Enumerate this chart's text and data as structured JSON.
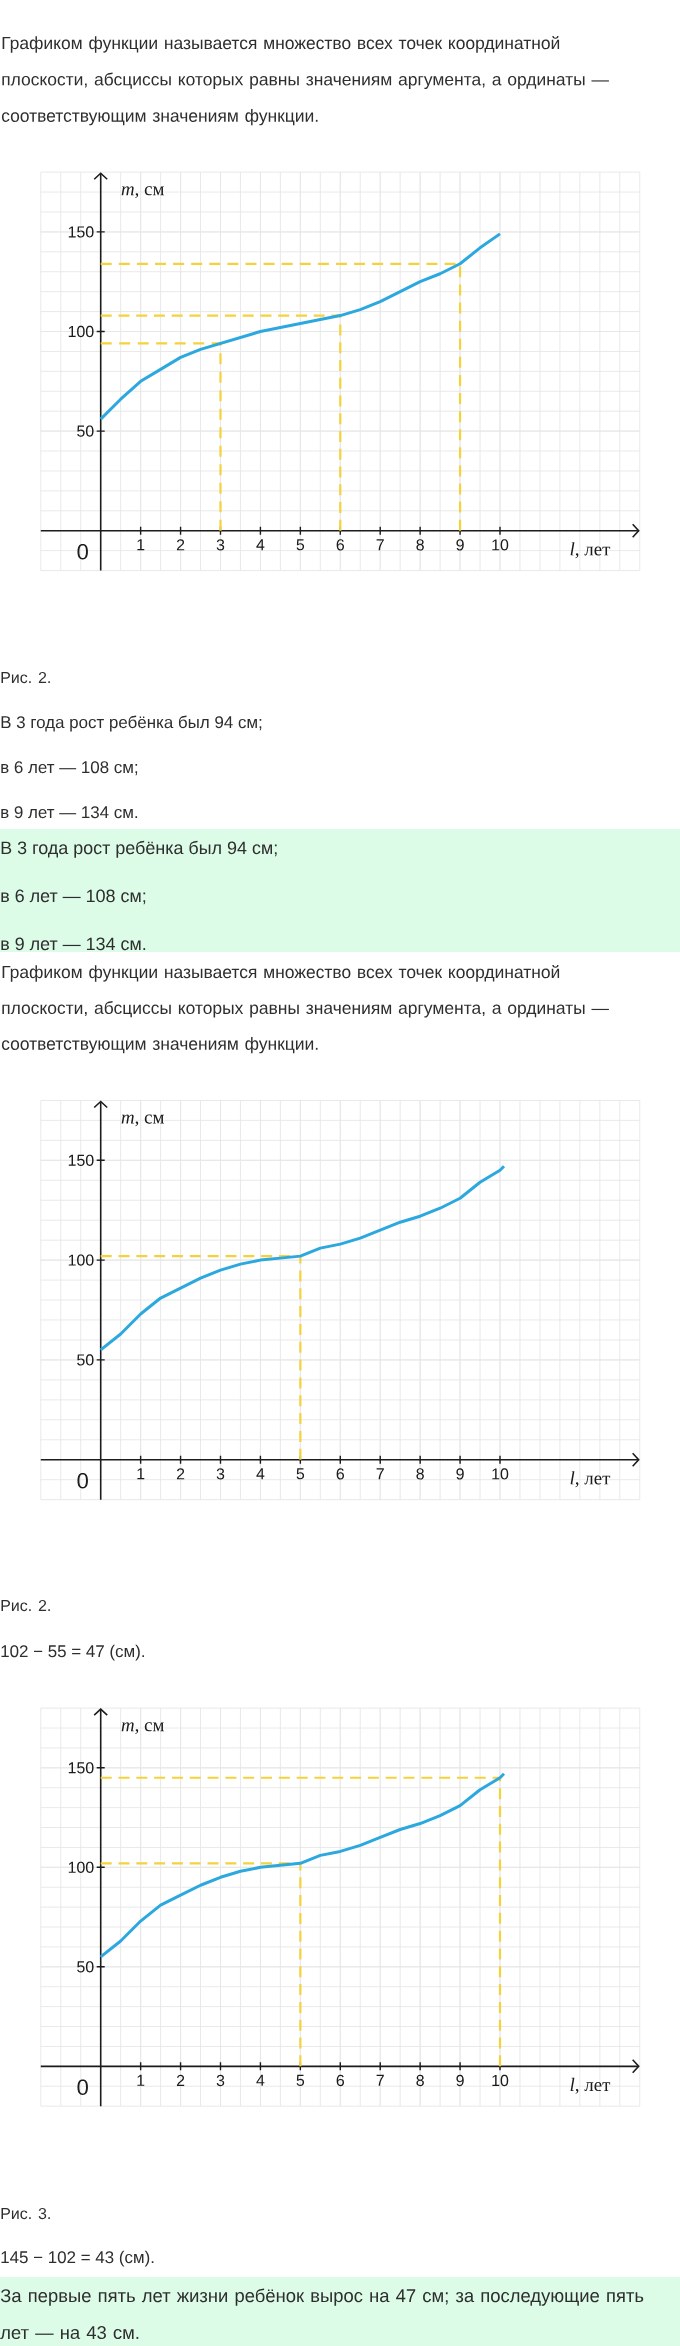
{
  "chart_data": [
    {
      "type": "line",
      "title": "Графиком функции называется множество всех точек координатной плоскости, абсциссы которых равны значениям аргумента, а ординаты — соответствующим значениям функции.",
      "xlabel": "*l*, лет",
      "ylabel": "*m*, см",
      "xlim": [
        -1.5,
        13.5
      ],
      "ylim": [
        -20,
        180
      ],
      "xticks": [
        1,
        2,
        3,
        4,
        5,
        6,
        7,
        8,
        9,
        10
      ],
      "yticks": [
        50,
        100,
        150
      ],
      "grid": true,
      "series": [
        {
          "color": "#2ca8df",
          "x": [
            0,
            0.5,
            1,
            1.5,
            2,
            2.5,
            3,
            3.5,
            4,
            4.5,
            5,
            5.5,
            6,
            6.5,
            7,
            7.5,
            8,
            8.5,
            9,
            9.5,
            10
          ],
          "values": [
            56,
            66,
            75,
            81,
            87,
            91,
            94,
            97,
            100,
            102,
            104,
            106,
            108,
            111,
            115,
            120,
            125,
            129,
            134,
            142,
            149
          ]
        },
        {
          "color": "#f3d23c",
          "line_style": "dashed",
          "x": [
            0,
            3,
            3
          ],
          "values": [
            94,
            94,
            0
          ]
        },
        {
          "color": "#f3d23c",
          "line_style": "dashed",
          "x": [
            0,
            6,
            6
          ],
          "values": [
            108,
            108,
            0
          ]
        },
        {
          "color": "#f3d23c",
          "line_style": "dashed",
          "x": [
            0,
            9,
            9
          ],
          "values": [
            134,
            134,
            0
          ]
        }
      ],
      "annotations": [
        "0",
        "Рис. 2.",
        "В 3 года рост ребёнка был 94 см;",
        "в 6 лет — 108 см;",
        "в 9 лет — 134 см."
      ]
    },
    {
      "type": "other",
      "annotations": [
        "В 3 года рост ребёнка был 94 см;",
        "в 6 лет — 108 см;",
        "в 9 лет — 134 см."
      ]
    },
    {
      "type": "line",
      "title": "Графиком функции называется множество всех точек координатной плоскости, абсциссы которых равны значениям аргумента, а ординаты — соответствующим значениям функции.",
      "xlabel": "*l*, лет",
      "ylabel": "*m*, см",
      "xlim": [
        -1.5,
        13.5
      ],
      "ylim": [
        -20,
        180
      ],
      "xticks": [
        1,
        2,
        3,
        4,
        5,
        6,
        7,
        8,
        9,
        10
      ],
      "yticks": [
        50,
        100,
        150
      ],
      "grid": true,
      "series": [
        {
          "color": "#2ca8df",
          "x": [
            0,
            0.5,
            1,
            1.5,
            2,
            2.5,
            3,
            3.5,
            4,
            4.5,
            5,
            5.5,
            6,
            6.5,
            7,
            7.5,
            8,
            8.5,
            9,
            9.5,
            10,
            10.1
          ],
          "values": [
            55,
            63,
            73,
            81,
            86,
            91,
            95,
            98,
            100,
            101,
            102,
            106,
            108,
            111,
            115,
            119,
            122,
            126,
            131,
            139,
            145,
            147
          ]
        },
        {
          "color": "#f3d23c",
          "line_style": "dashed",
          "x": [
            0,
            5,
            5
          ],
          "values": [
            102,
            102,
            0
          ]
        }
      ],
      "annotations": [
        "0",
        "Рис. 2.",
        "102 − 55 = 47 (см)."
      ]
    },
    {
      "type": "line",
      "xlabel": "*l*, лет",
      "ylabel": "*m*, см",
      "xlim": [
        -1.5,
        13.5
      ],
      "ylim": [
        -20,
        180
      ],
      "xticks": [
        1,
        2,
        3,
        4,
        5,
        6,
        7,
        8,
        9,
        10
      ],
      "yticks": [
        50,
        100,
        150
      ],
      "grid": true,
      "series": [
        {
          "color": "#2ca8df",
          "x": [
            0,
            0.5,
            1,
            1.5,
            2,
            2.5,
            3,
            3.5,
            4,
            4.5,
            5,
            5.5,
            6,
            6.5,
            7,
            7.5,
            8,
            8.5,
            9,
            9.5,
            10,
            10.1
          ],
          "values": [
            55,
            63,
            73,
            81,
            86,
            91,
            95,
            98,
            100,
            101,
            102,
            106,
            108,
            111,
            115,
            119,
            122,
            126,
            131,
            139,
            145,
            147
          ]
        },
        {
          "color": "#f3d23c",
          "line_style": "dashed",
          "x": [
            0,
            5,
            5
          ],
          "values": [
            102,
            102,
            0
          ]
        },
        {
          "color": "#f3d23c",
          "line_style": "dashed",
          "x": [
            0,
            10,
            10
          ],
          "values": [
            145,
            145,
            0
          ]
        }
      ],
      "annotations": [
        "0",
        "Рис. 3.",
        "145 − 102 = 43 (см)."
      ]
    },
    {
      "type": "other",
      "annotations": [
        "За первые пять лет жизни ребёнок вырос на 47 см; за последующие пять лет — на 43 см."
      ]
    }
  ]
}
